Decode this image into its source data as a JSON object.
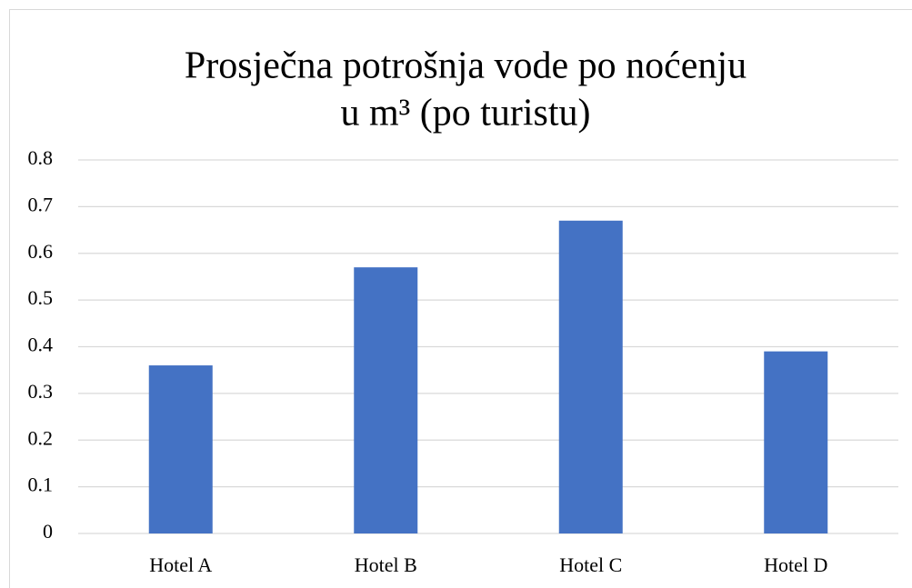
{
  "chart_data": {
    "type": "bar",
    "title": [
      "Prosječna potrošnja vode po noćenju",
      "u m³ (po turistu)"
    ],
    "categories": [
      "Hotel A",
      "Hotel B",
      "Hotel C",
      "Hotel D"
    ],
    "values": [
      0.36,
      0.57,
      0.67,
      0.39
    ],
    "color": "#4472c4",
    "ylim": [
      0,
      0.8
    ],
    "yticks": [
      0,
      0.1,
      0.2,
      0.3,
      0.4,
      0.5,
      0.6,
      0.7,
      0.8
    ],
    "grid": true
  }
}
